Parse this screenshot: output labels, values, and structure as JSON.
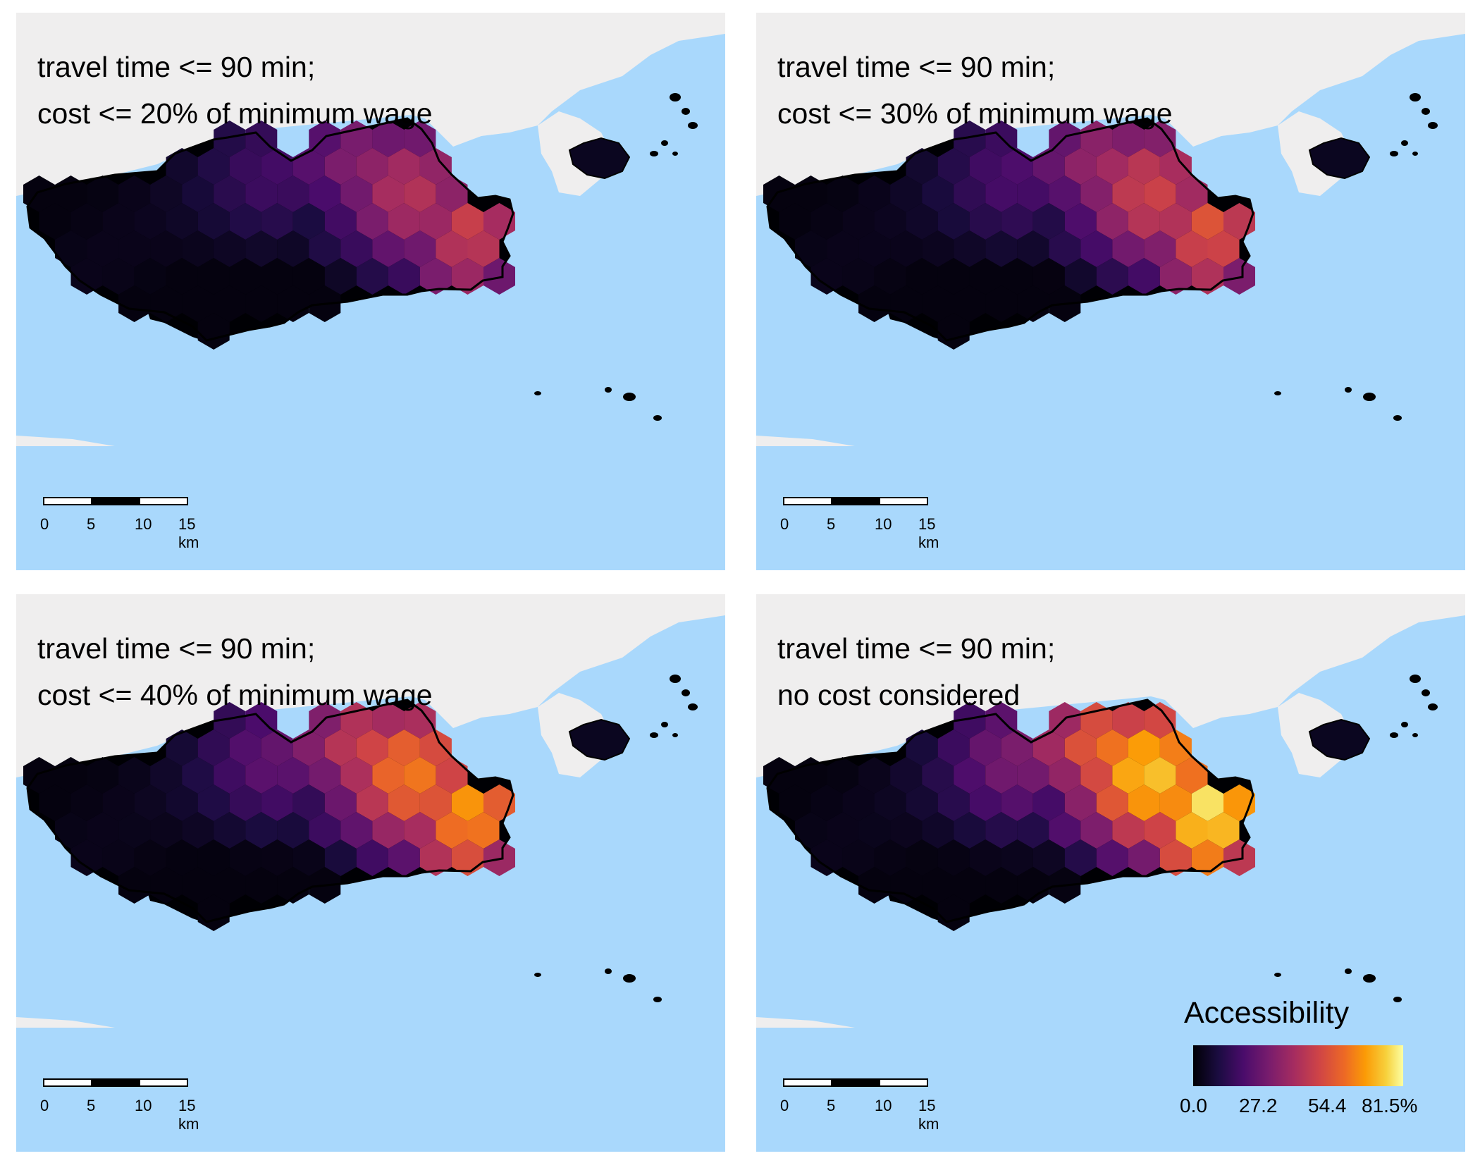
{
  "panels": [
    {
      "line1": "travel time <= 90 min;",
      "line2": "cost <= 20% of minimum wage",
      "level": 0.55
    },
    {
      "line1": "travel time <= 90 min;",
      "line2": "cost <= 30% of minimum wage",
      "level": 0.62
    },
    {
      "line1": "travel time <= 90 min;",
      "line2": "cost <= 40% of minimum wage",
      "level": 0.78
    },
    {
      "line1": "travel time <= 90 min;",
      "line2": "no cost considered",
      "level": 0.95
    }
  ],
  "scalebar": {
    "ticks": [
      "0",
      "5",
      "10",
      "15 km"
    ]
  },
  "legend": {
    "title": "Accessibility",
    "ticks": [
      "0.0",
      "27.2",
      "54.4",
      "81.5%"
    ],
    "palette": [
      "#000004",
      "#1b0c41",
      "#4a0c6b",
      "#781c6d",
      "#a52c60",
      "#cf4446",
      "#ed6925",
      "#fb9b06",
      "#f7d13d",
      "#fcffa4"
    ]
  },
  "colors": {
    "water": "#a9d8fc",
    "land_outside": "#efeeee",
    "city_base": "#000004"
  }
}
